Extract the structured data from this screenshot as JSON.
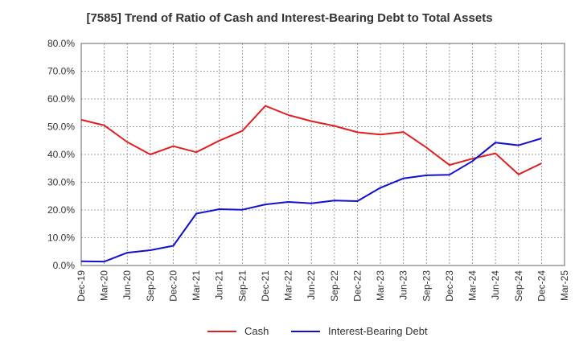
{
  "chart_data": {
    "type": "line",
    "title": "[7585]  Trend of Ratio of Cash and Interest-Bearing Debt to Total Assets",
    "xlabel": "",
    "ylabel": "",
    "categories": [
      "Dec-19",
      "Mar-20",
      "Jun-20",
      "Sep-20",
      "Dec-20",
      "Mar-21",
      "Jun-21",
      "Sep-21",
      "Dec-21",
      "Mar-22",
      "Jun-22",
      "Sep-22",
      "Dec-22",
      "Mar-23",
      "Jun-23",
      "Sep-23",
      "Dec-23",
      "Mar-24",
      "Jun-24",
      "Sep-24",
      "Dec-24",
      "Mar-25"
    ],
    "y_ticks": [
      "0.0%",
      "10.0%",
      "20.0%",
      "30.0%",
      "40.0%",
      "50.0%",
      "60.0%",
      "70.0%",
      "80.0%"
    ],
    "ylim": [
      0,
      80
    ],
    "grid": true,
    "legend_position": "bottom",
    "series": [
      {
        "name": "Cash",
        "color": "#e02020",
        "values": [
          52.5,
          50.5,
          44.5,
          40.0,
          43.0,
          40.8,
          45.0,
          48.5,
          57.5,
          54.2,
          52.0,
          50.3,
          48.0,
          47.2,
          48.1,
          42.5,
          36.2,
          38.5,
          40.4,
          32.8,
          36.8,
          null
        ]
      },
      {
        "name": "Interest-Bearing Debt",
        "color": "#1010d0",
        "values": [
          1.5,
          1.4,
          4.6,
          5.5,
          7.1,
          18.7,
          20.3,
          20.1,
          22.0,
          22.9,
          22.4,
          23.4,
          23.2,
          28.0,
          31.4,
          32.5,
          32.7,
          37.6,
          44.3,
          43.3,
          45.8,
          null
        ]
      }
    ]
  }
}
